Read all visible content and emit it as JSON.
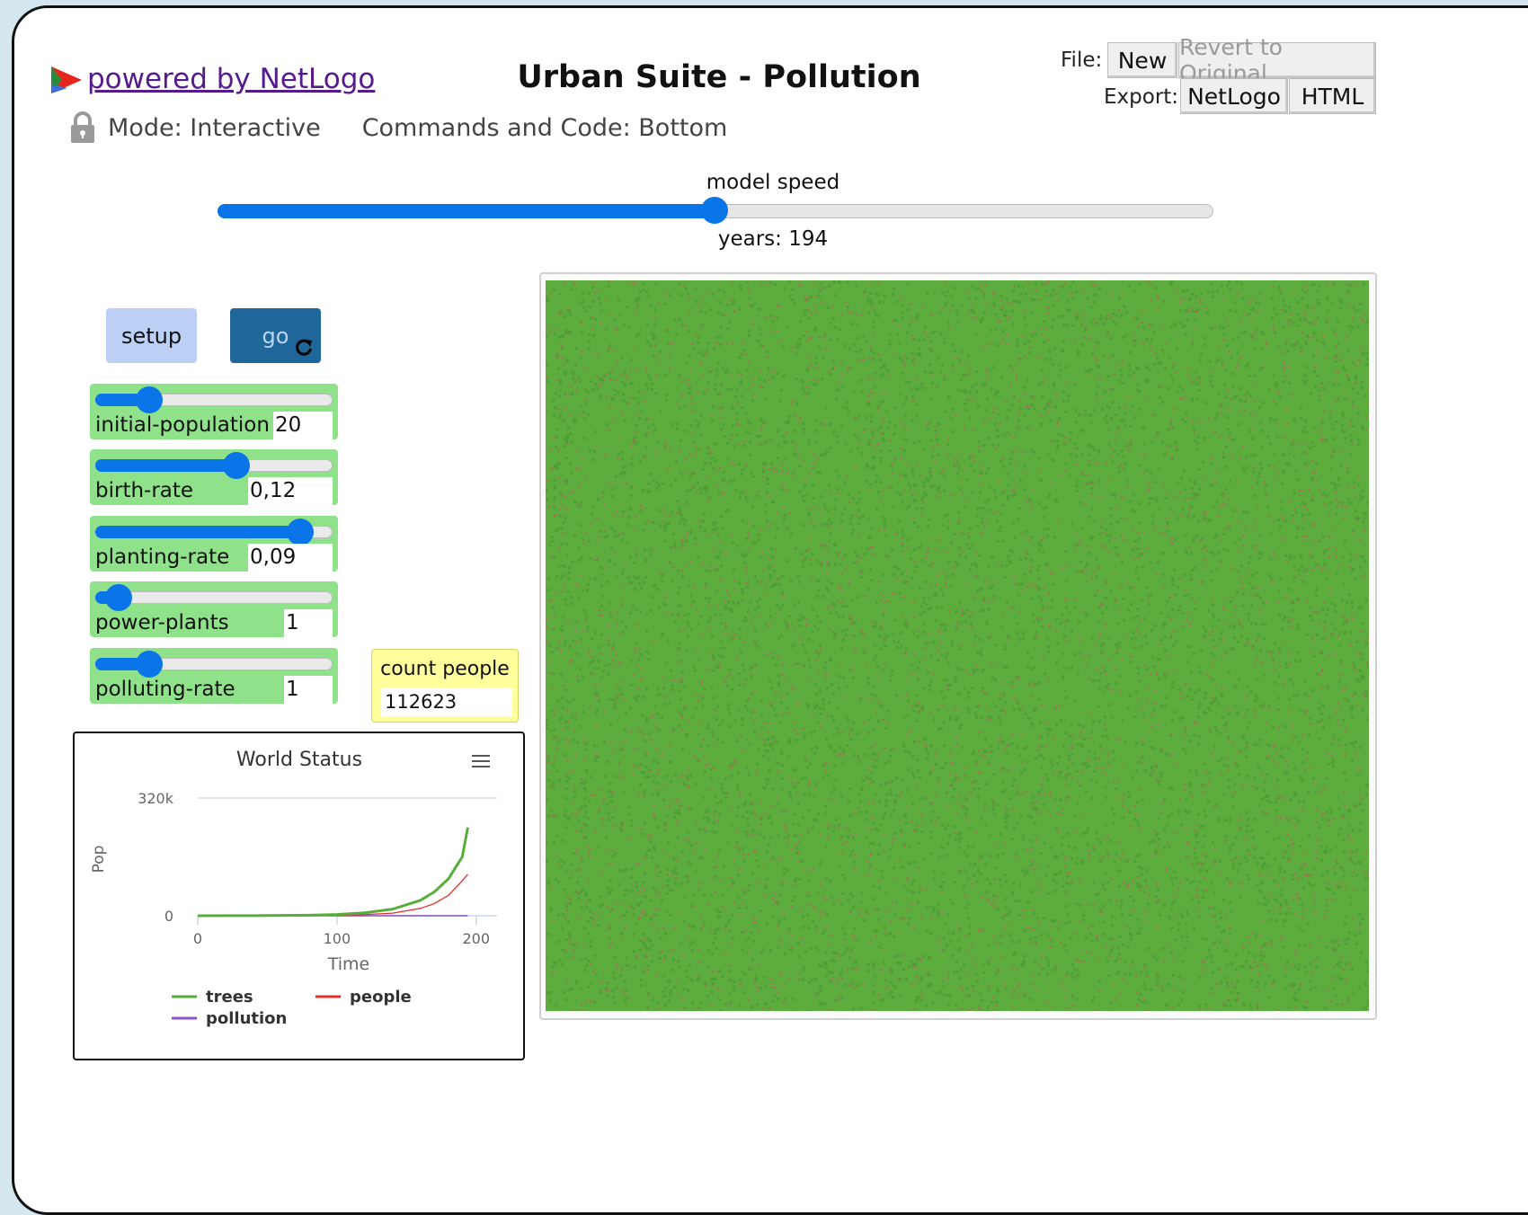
{
  "header": {
    "powered_by": "powered by NetLogo",
    "title": "Urban Suite - Pollution",
    "mode_label": "Mode: Interactive",
    "code_label": "Commands and Code: Bottom"
  },
  "toolbar": {
    "file_label": "File:",
    "new_label": "New",
    "revert_label": "Revert to Original",
    "export_label": "Export:",
    "netlogo_label": "NetLogo",
    "html_label": "HTML"
  },
  "speed": {
    "label": "model speed",
    "value_fraction": 0.5,
    "ticks_label": "years: 194"
  },
  "buttons": {
    "setup": "setup",
    "go": "go"
  },
  "sliders": [
    {
      "name": "initial-population",
      "value": "20",
      "fraction": 0.23
    },
    {
      "name": "birth-rate",
      "value": "0,12",
      "fraction": 0.6
    },
    {
      "name": "planting-rate",
      "value": "0,09",
      "fraction": 0.87
    },
    {
      "name": "power-plants",
      "value": "1",
      "fraction": 0.1
    },
    {
      "name": "polluting-rate",
      "value": "1",
      "fraction": 0.23
    }
  ],
  "monitor": {
    "label": "count people",
    "value": "112623"
  },
  "chart_data": {
    "type": "line",
    "title": "World Status",
    "xlabel": "Time",
    "ylabel": "Pop",
    "xlim": [
      0,
      215
    ],
    "ylim": [
      0,
      320000
    ],
    "xticks": [
      "0",
      "100",
      "200"
    ],
    "yticks": [
      "0",
      "320k"
    ],
    "grid": true,
    "legend_position": "bottom",
    "series": [
      {
        "name": "trees",
        "color": "#55ae3a",
        "x": [
          0,
          40,
          80,
          100,
          120,
          140,
          160,
          170,
          180,
          190,
          194
        ],
        "y": [
          0,
          300,
          1500,
          3500,
          8000,
          18000,
          42000,
          65000,
          100000,
          160000,
          240000
        ]
      },
      {
        "name": "people",
        "color": "#e4302c",
        "x": [
          0,
          40,
          80,
          100,
          120,
          140,
          160,
          170,
          180,
          190,
          194
        ],
        "y": [
          0,
          100,
          500,
          1200,
          3000,
          7000,
          20000,
          33000,
          55000,
          95000,
          112623
        ]
      },
      {
        "name": "pollution",
        "color": "#8b53c7",
        "x": [
          0,
          100,
          194
        ],
        "y": [
          0,
          0,
          0
        ]
      }
    ]
  }
}
